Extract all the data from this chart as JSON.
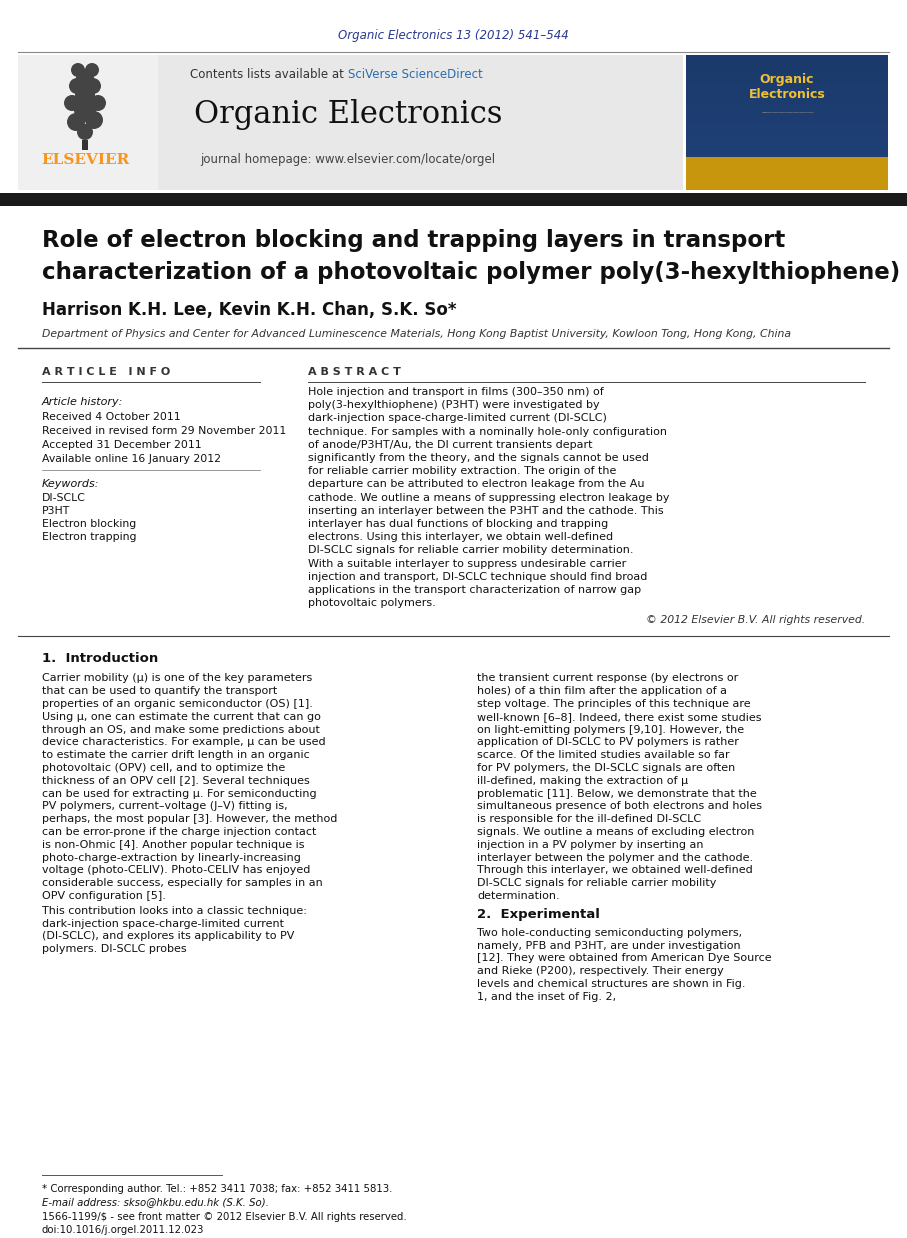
{
  "page_bg": "#ffffff",
  "header_journal_line": "Organic Electronics 13 (2012) 541–544",
  "header_journal_color": "#2b3990",
  "journal_name": "Organic Electronics",
  "journal_homepage": "journal homepage: www.elsevier.com/locate/orgel",
  "contents_line": "Contents lists available at ",
  "elsevier_color": "#f7941d",
  "elsevier_text": "ELSEVIER",
  "header_bg": "#e8e8e8",
  "thick_bar_color": "#1a1a1a",
  "article_title_line1": "Role of electron blocking and trapping layers in transport",
  "article_title_line2": "characterization of a photovoltaic polymer poly(3-hexylthiophene)",
  "authors": "Harrison K.H. Lee, Kevin K.H. Chan, S.K. So",
  "authors_star": "*",
  "affiliation": "Department of Physics and Center for Advanced Luminescence Materials, Hong Kong Baptist University, Kowloon Tong, Hong Kong, China",
  "section_article_info": "A R T I C L E   I N F O",
  "section_abstract": "A B S T R A C T",
  "article_history_label": "Article history:",
  "received1": "Received 4 October 2011",
  "received2": "Received in revised form 29 November 2011",
  "accepted": "Accepted 31 December 2011",
  "available": "Available online 16 January 2012",
  "keywords_label": "Keywords:",
  "keyword1": "DI-SCLC",
  "keyword2": "P3HT",
  "keyword3": "Electron blocking",
  "keyword4": "Electron trapping",
  "abstract_text": "Hole injection and transport in films (300–350 nm) of poly(3-hexylthiophene) (P3HT) were investigated by dark-injection space-charge-limited current (DI-SCLC) technique. For samples with a nominally hole-only configuration of anode/P3HT/Au, the DI current transients depart significantly from the theory, and the signals cannot be used for reliable carrier mobility extraction. The origin of the departure can be attributed to electron leakage from the Au cathode. We outline a means of suppressing electron leakage by inserting an interlayer between the P3HT and the cathode. This interlayer has dual functions of blocking and trapping electrons. Using this interlayer, we obtain well-defined DI-SCLC signals for reliable carrier mobility determination. With a suitable interlayer to suppress undesirable carrier injection and transport, DI-SCLC technique should find broad applications in the transport characterization of narrow gap photovoltaic polymers.",
  "copyright_line": "© 2012 Elsevier B.V. All rights reserved.",
  "intro_header": "1.  Introduction",
  "intro_text1": "Carrier mobility (μ) is one of the key parameters that can be used to quantify the transport properties of an organic semiconductor (OS) [1]. Using μ, one can estimate the current that can go through an OS, and make some predictions about device characteristics. For example, μ can be used to estimate the carrier drift length in an organic photovoltaic (OPV) cell, and to optimize the thickness of an OPV cell [2]. Several techniques can be used for extracting μ. For semiconducting PV polymers, current–voltage (J–V) fitting is, perhaps, the most popular [3]. However, the method can be error-prone if the charge injection contact is non-Ohmic [4]. Another popular technique is photo-charge-extraction by linearly-increasing voltage (photo-CELIV). Photo-CELIV has enjoyed considerable success, especially for samples in an OPV configuration [5].",
  "intro_text2": "     This contribution looks into a classic technique: dark-injection space-charge-limited current (DI-SCLC), and explores its applicability to PV polymers. DI-SCLC probes",
  "right_col_text": "the transient current response (by electrons or holes) of a thin film after the application of a step voltage. The principles of this technique are well-known [6–8]. Indeed, there exist some studies on light-emitting polymers [9,10]. However, the application of DI-SCLC to PV polymers is rather scarce. Of the limited studies available so far for PV polymers, the DI-SCLC signals are often ill-defined, making the extraction of μ problematic [11]. Below, we demonstrate that the simultaneous presence of both electrons and holes is responsible for the ill-defined DI-SCLC signals. We outline a means of excluding electron injection in a PV polymer by inserting an interlayer between the polymer and the cathode. Through this interlayer, we obtained well-defined DI-SCLC signals for reliable carrier mobility determination.",
  "section2_header": "2.  Experimental",
  "section2_text": "     Two hole-conducting semiconducting polymers, namely, PFB and P3HT, are under investigation [12]. They were obtained from American Dye Source and Rieke (P200), respectively. Their energy levels and chemical structures are shown in Fig. 1, and the inset of Fig. 2,",
  "footnote_star": "* Corresponding author. Tel.: +852 3411 7038; fax: +852 3411 5813.",
  "footnote_email": "E-mail address: skso@hkbu.edu.hk (S.K. So).",
  "footnote_issn": "1566-1199/$ - see front matter © 2012 Elsevier B.V. All rights reserved.",
  "footnote_doi": "doi:10.1016/j.orgel.2011.12.023",
  "sciverse_color": "#2b6cb0",
  "sciverse_text": "SciVerse ScienceDirect"
}
